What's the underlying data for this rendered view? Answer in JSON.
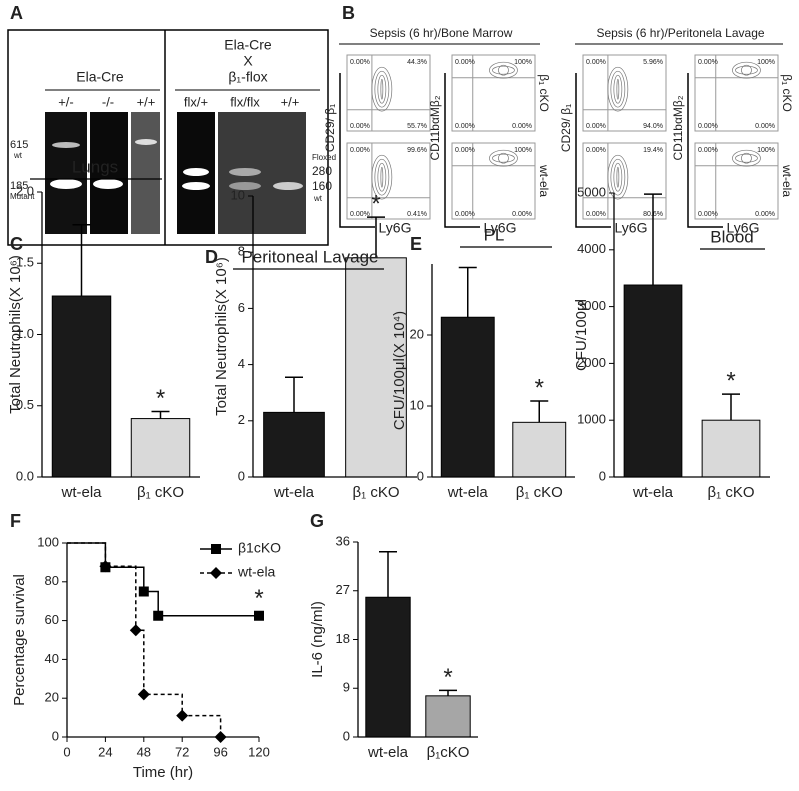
{
  "gel": {
    "panel": "A",
    "left_title": "Ela-Cre",
    "left_lanes": [
      "+/-",
      "-/-",
      "+/+"
    ],
    "cross": [
      "Ela-Cre",
      "X",
      "β₁-flox"
    ],
    "right_lanes": [
      "flx/+",
      "flx/flx",
      "+/+"
    ],
    "left_markers": [
      "615",
      "wt",
      "185",
      "Mutant"
    ],
    "right_markers": [
      "Floxed",
      "280",
      "160",
      "wt"
    ]
  },
  "flow": {
    "panel": "B",
    "x_label": "Ly6G",
    "y_labels": [
      "CD29/ β₁",
      "CD11bαMβ₂"
    ],
    "row_labels": [
      "β₁ cKO",
      "wt-ela"
    ],
    "groups": [
      {
        "title": "Sepsis (6 hr)/Bone Marrow",
        "plots": [
          [
            "0.00%",
            "44.3%",
            "0.00%",
            "55.7%"
          ],
          [
            "0.00%",
            "100%",
            "0.00%",
            "0.00%"
          ],
          [
            "0.00%",
            "99.6%",
            "0.00%",
            "0.41%"
          ],
          [
            "0.00%",
            "100%",
            "0.00%",
            "0.00%"
          ]
        ]
      },
      {
        "title": "Sepsis (6 hr)/Peritonela Lavage",
        "plots": [
          [
            "0.00%",
            "5.96%",
            "0.00%",
            "94.0%"
          ],
          [
            "0.00%",
            "100%",
            "0.00%",
            "0.00%"
          ],
          [
            "0.00%",
            "19.4%",
            "0.00%",
            "80.6%"
          ],
          [
            "0.00%",
            "100%",
            "0.00%",
            "0.00%"
          ]
        ]
      }
    ]
  },
  "chart_data": [
    {
      "type": "bar",
      "panel": "C",
      "title": "Lungs",
      "ylabel": "Total  Neutrophils(X 10⁶)",
      "categories": [
        "wt-ela",
        "β₁ cKO"
      ],
      "values": [
        1.27,
        0.41
      ],
      "errors": [
        0.5,
        0.05
      ],
      "colors": [
        "#1a1a1a",
        "#d9d9d9"
      ],
      "ylim": [
        0,
        2
      ],
      "yticks": [
        {
          "value": 0,
          "label": "0.0"
        },
        0.5,
        {
          "value": 1,
          "label": "1.0"
        },
        1.5,
        {
          "value": 2,
          "label": "2.0"
        }
      ],
      "annotation": "*"
    },
    {
      "type": "bar",
      "panel": "D",
      "title": "Peritoneal Lavage",
      "ylabel": "Total  Neutrophils(X 10⁶)",
      "categories": [
        "wt-ela",
        "β₁ cKO"
      ],
      "values": [
        2.3,
        7.8
      ],
      "errors": [
        1.25,
        1.45
      ],
      "colors": [
        "#1a1a1a",
        "#d9d9d9"
      ],
      "ylim": [
        0,
        10
      ],
      "yticks": [
        0,
        2,
        4,
        6,
        8,
        10
      ],
      "annotation": "*"
    },
    {
      "type": "bar",
      "panel": "E",
      "title": "PL",
      "ylabel": "CFU/100μl(X 10⁴)",
      "categories": [
        "wt-ela",
        "β₁ cKO"
      ],
      "values": [
        22.5,
        7.7
      ],
      "errors": [
        7,
        3
      ],
      "colors": [
        "#1a1a1a",
        "#d9d9d9"
      ],
      "ylim": [
        0,
        30
      ],
      "yticks": [
        0,
        10,
        20
      ],
      "annotation": "*"
    },
    {
      "type": "bar",
      "title": "Blood",
      "ylabel": "CFU/100μl",
      "categories": [
        "wt-ela",
        "β₁ cKO"
      ],
      "values": [
        3380,
        1000
      ],
      "errors": [
        1600,
        460
      ],
      "colors": [
        "#1a1a1a",
        "#d9d9d9"
      ],
      "ylim": [
        0,
        5000
      ],
      "yticks": [
        0,
        1000,
        2000,
        3000,
        4000,
        5000
      ],
      "annotation": "*"
    },
    {
      "type": "line",
      "panel": "F",
      "ylabel": "Percentage survival",
      "xlabel": "Time (hr)",
      "xlim": [
        0,
        120
      ],
      "xticks": [
        0,
        24,
        48,
        72,
        96,
        120
      ],
      "ylim": [
        0,
        100
      ],
      "yticks": [
        0,
        20,
        40,
        60,
        80,
        100
      ],
      "annotation": "*",
      "series": [
        {
          "name": "β1cKO",
          "color": "#000000",
          "marker": "square",
          "dash": false,
          "x": [
            0,
            24,
            48,
            57,
            120
          ],
          "values": [
            100,
            87.5,
            75,
            62.5,
            62.5
          ]
        },
        {
          "name": "wt-ela",
          "color": "#000000",
          "marker": "diamond",
          "dash": true,
          "x": [
            0,
            24,
            43,
            48,
            72,
            96
          ],
          "values": [
            100,
            88,
            55,
            22,
            11,
            0
          ]
        }
      ]
    },
    {
      "type": "bar",
      "panel": "G",
      "ylabel": "IL-6 (ng/ml)",
      "categories": [
        "wt-ela",
        "β₁cKO"
      ],
      "values": [
        25.8,
        7.6
      ],
      "errors": [
        8.4,
        1.0
      ],
      "colors": [
        "#1a1a1a",
        "#a6a6a6"
      ],
      "ylim": [
        0,
        36
      ],
      "yticks": [
        0,
        9,
        18,
        27,
        36
      ],
      "annotation": "*"
    }
  ]
}
